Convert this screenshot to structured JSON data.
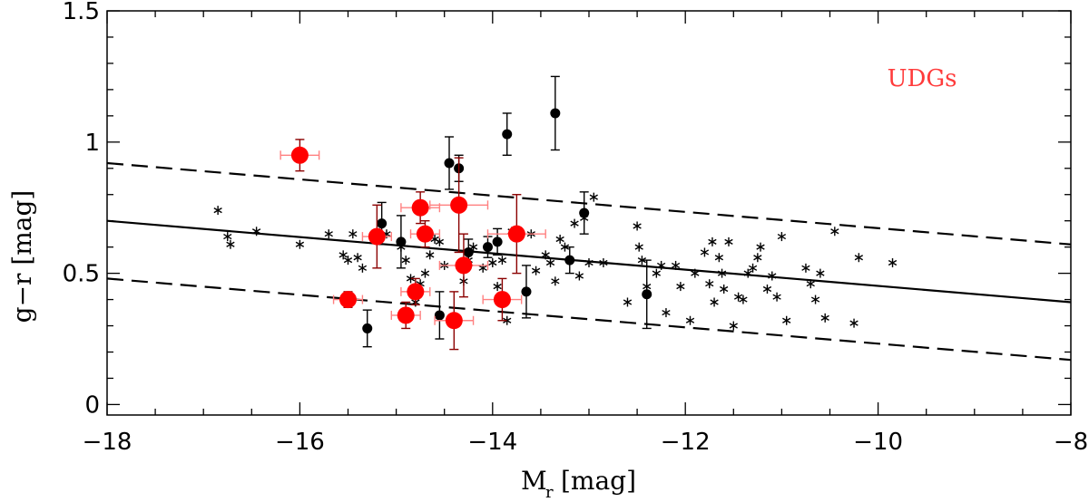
{
  "chart_data": {
    "type": "scatter",
    "title": "",
    "xlabel": "M",
    "xlabel_sub": "r",
    "xlabel_unit": "[mag]",
    "ylabel": "g−r [mag]",
    "xlim": [
      -18,
      -8
    ],
    "ylim": [
      -0.04,
      1.5
    ],
    "x_ticks": [
      -18,
      -16,
      -14,
      -12,
      -10,
      -8
    ],
    "x_tick_labels": [
      "−18",
      "−16",
      "−14",
      "−12",
      "−10",
      "−8"
    ],
    "y_ticks": [
      0,
      0.5,
      1,
      1.5
    ],
    "y_tick_labels": [
      "0",
      "0.5",
      "1",
      "1.5"
    ],
    "legend": {
      "label": "UDGs",
      "color": "#ff3b3b",
      "placement": "top-right"
    },
    "colors": {
      "udg_fill": "#ff0000",
      "udg_error_x": "#ff8080",
      "udg_error_y": "#8b0000",
      "black": "#000000"
    },
    "lines": [
      {
        "name": "cmr-fit",
        "style": "solid",
        "x": [
          -18,
          -8
        ],
        "y": [
          0.7,
          0.39
        ]
      },
      {
        "name": "cmr-upper",
        "style": "dashed",
        "x": [
          -18,
          -8
        ],
        "y": [
          0.92,
          0.61
        ]
      },
      {
        "name": "cmr-lower",
        "style": "dashed",
        "x": [
          -18,
          -8
        ],
        "y": [
          0.48,
          0.17
        ]
      }
    ],
    "series": [
      {
        "name": "UDGs",
        "marker": "large-filled-circle",
        "points": [
          {
            "x": -16.0,
            "y": 0.95,
            "xerr": 0.2,
            "yerr": 0.06
          },
          {
            "x": -15.5,
            "y": 0.4,
            "xerr": 0.15,
            "yerr": 0.03
          },
          {
            "x": -15.2,
            "y": 0.64,
            "xerr": 0.15,
            "yerr": 0.12
          },
          {
            "x": -14.9,
            "y": 0.34,
            "xerr": 0.15,
            "yerr": 0.05
          },
          {
            "x": -14.8,
            "y": 0.43,
            "xerr": 0.15,
            "yerr": 0.05
          },
          {
            "x": -14.75,
            "y": 0.75,
            "xerr": 0.2,
            "yerr": 0.06
          },
          {
            "x": -14.7,
            "y": 0.65,
            "xerr": 0.15,
            "yerr": 0.05
          },
          {
            "x": -14.4,
            "y": 0.32,
            "xerr": 0.2,
            "yerr": 0.11
          },
          {
            "x": -14.35,
            "y": 0.76,
            "xerr": 0.3,
            "yerr": 0.18
          },
          {
            "x": -14.3,
            "y": 0.53,
            "xerr": 0.25,
            "yerr": 0.12
          },
          {
            "x": -13.9,
            "y": 0.4,
            "xerr": 0.2,
            "yerr": 0.08
          },
          {
            "x": -13.75,
            "y": 0.65,
            "xerr": 0.3,
            "yerr": 0.15
          }
        ]
      },
      {
        "name": "Dwarfs with errors",
        "marker": "small-filled-circle",
        "points": [
          {
            "x": -15.3,
            "y": 0.29,
            "yerr": 0.07
          },
          {
            "x": -15.15,
            "y": 0.69,
            "yerr": 0.08
          },
          {
            "x": -14.95,
            "y": 0.62,
            "yerr": 0.1
          },
          {
            "x": -14.55,
            "y": 0.34,
            "yerr": 0.09
          },
          {
            "x": -14.45,
            "y": 0.92,
            "yerr": 0.1
          },
          {
            "x": -14.35,
            "y": 0.9,
            "yerr": 0.05
          },
          {
            "x": -14.25,
            "y": 0.58,
            "yerr": 0.05
          },
          {
            "x": -14.05,
            "y": 0.6,
            "yerr": 0.04
          },
          {
            "x": -13.95,
            "y": 0.62,
            "yerr": 0.05
          },
          {
            "x": -13.85,
            "y": 1.03,
            "yerr": 0.08
          },
          {
            "x": -13.65,
            "y": 0.43,
            "yerr": 0.1
          },
          {
            "x": -13.35,
            "y": 1.11,
            "yerr": 0.14
          },
          {
            "x": -13.2,
            "y": 0.55,
            "yerr": 0.05
          },
          {
            "x": -13.05,
            "y": 0.73,
            "yerr": 0.08
          },
          {
            "x": -12.4,
            "y": 0.42,
            "yerr": 0.13
          }
        ]
      },
      {
        "name": "Dwarfs",
        "marker": "asterisk",
        "x": [
          -16.85,
          -16.75,
          -16.72,
          -16.45,
          -16.0,
          -15.7,
          -15.55,
          -15.5,
          -15.45,
          -15.4,
          -15.35,
          -15.1,
          -14.95,
          -14.9,
          -14.85,
          -14.8,
          -14.75,
          -14.7,
          -14.65,
          -14.6,
          -14.55,
          -14.5,
          -14.3,
          -14.25,
          -14.2,
          -14.1,
          -14.0,
          -13.95,
          -13.9,
          -13.85,
          -13.8,
          -13.6,
          -13.55,
          -13.45,
          -13.4,
          -13.35,
          -13.3,
          -13.25,
          -13.2,
          -13.15,
          -13.1,
          -13.05,
          -13.0,
          -12.95,
          -12.85,
          -12.6,
          -12.5,
          -12.48,
          -12.45,
          -12.4,
          -12.3,
          -12.25,
          -12.2,
          -12.1,
          -12.05,
          -11.95,
          -11.9,
          -11.8,
          -11.75,
          -11.72,
          -11.7,
          -11.65,
          -11.62,
          -11.6,
          -11.55,
          -11.5,
          -11.45,
          -11.4,
          -11.35,
          -11.3,
          -11.25,
          -11.22,
          -11.15,
          -11.1,
          -11.05,
          -11.0,
          -10.95,
          -10.75,
          -10.7,
          -10.65,
          -10.6,
          -10.55,
          -10.45,
          -10.25,
          -10.2,
          -9.85
        ],
        "y": [
          0.74,
          0.64,
          0.61,
          0.66,
          0.61,
          0.65,
          0.57,
          0.55,
          0.65,
          0.56,
          0.52,
          0.65,
          0.6,
          0.55,
          0.48,
          0.39,
          0.46,
          0.5,
          0.57,
          0.63,
          0.62,
          0.53,
          0.47,
          0.55,
          0.6,
          0.52,
          0.54,
          0.45,
          0.55,
          0.32,
          0.66,
          0.65,
          0.51,
          0.57,
          0.54,
          0.47,
          0.63,
          0.6,
          0.55,
          0.69,
          0.49,
          0.71,
          0.54,
          0.79,
          0.54,
          0.39,
          0.68,
          0.6,
          0.55,
          0.45,
          0.5,
          0.53,
          0.35,
          0.53,
          0.45,
          0.32,
          0.5,
          0.58,
          0.46,
          0.62,
          0.39,
          0.56,
          0.5,
          0.44,
          0.62,
          0.3,
          0.41,
          0.4,
          0.5,
          0.52,
          0.56,
          0.6,
          0.44,
          0.49,
          0.41,
          0.64,
          0.32,
          0.52,
          0.46,
          0.4,
          0.5,
          0.33,
          0.66,
          0.31,
          0.56,
          0.54
        ]
      }
    ]
  }
}
